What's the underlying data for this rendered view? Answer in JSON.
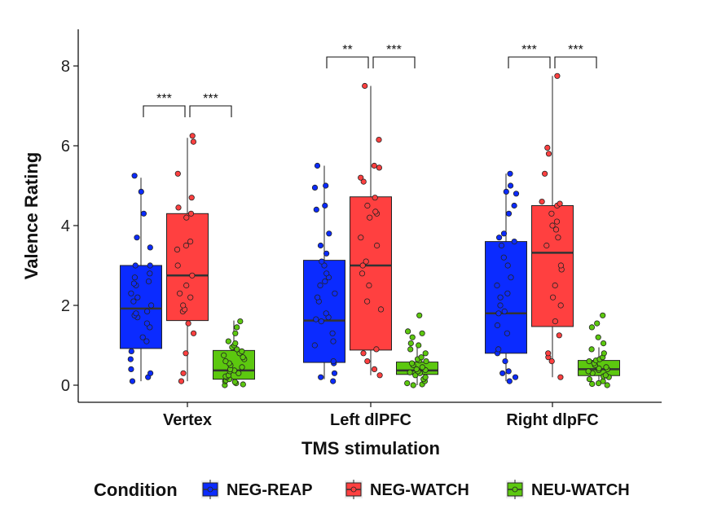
{
  "chart_data": {
    "type": "box",
    "xlabel": "TMS stimulation",
    "ylabel": "Valence Rating",
    "ylim": [
      -0.4,
      8.9
    ],
    "yticks": [
      0,
      2,
      4,
      6,
      8
    ],
    "grid": false,
    "categories": [
      "Vertex",
      "Left dlPFC",
      "Right dlpFC"
    ],
    "legend": {
      "title": "Condition",
      "position": "bottom",
      "items": [
        {
          "name": "NEG-REAP",
          "color": "#0b2bff"
        },
        {
          "name": "NEG-WATCH",
          "color": "#ff4040"
        },
        {
          "name": "NEU-WATCH",
          "color": "#5cc80f"
        }
      ]
    },
    "series": [
      {
        "name": "NEG-REAP",
        "color": "#0b2bff",
        "boxes": [
          {
            "whisker_low": 0.1,
            "q1": 0.92,
            "median": 1.92,
            "q3": 3.0,
            "whisker_high": 5.2,
            "points": [
              0.1,
              0.2,
              0.3,
              0.4,
              0.65,
              0.85,
              1.1,
              1.2,
              1.45,
              1.55,
              1.7,
              1.75,
              1.8,
              1.85,
              2.0,
              2.1,
              2.2,
              2.3,
              2.5,
              2.55,
              2.6,
              2.7,
              2.8,
              3.0,
              3.0,
              3.45,
              3.7,
              4.3,
              4.85,
              5.25
            ]
          },
          {
            "whisker_low": 0.15,
            "q1": 0.57,
            "median": 1.62,
            "q3": 3.13,
            "whisker_high": 5.5,
            "points": [
              0.1,
              0.2,
              0.3,
              0.55,
              0.6,
              1.0,
              1.1,
              1.3,
              1.6,
              1.65,
              1.7,
              1.8,
              2.1,
              2.2,
              2.3,
              2.5,
              2.6,
              2.7,
              2.8,
              3.0,
              3.1,
              3.3,
              3.5,
              3.8,
              4.4,
              4.5,
              4.95,
              5.0,
              5.5
            ]
          },
          {
            "whisker_low": 0.1,
            "q1": 0.8,
            "median": 1.8,
            "q3": 3.6,
            "whisker_high": 5.3,
            "points": [
              0.1,
              0.2,
              0.3,
              0.35,
              0.6,
              0.8,
              0.9,
              1.3,
              1.5,
              1.8,
              1.85,
              2.0,
              2.2,
              2.3,
              2.5,
              2.7,
              3.0,
              3.2,
              3.5,
              3.6,
              3.7,
              3.8,
              4.3,
              4.5,
              4.8,
              4.85,
              5.0,
              5.3
            ]
          }
        ]
      },
      {
        "name": "NEG-WATCH",
        "color": "#ff4040",
        "boxes": [
          {
            "whisker_low": 0.1,
            "q1": 1.62,
            "median": 2.75,
            "q3": 4.3,
            "whisker_high": 6.2,
            "points": [
              0.1,
              0.3,
              0.8,
              1.3,
              1.55,
              1.85,
              1.9,
              2.0,
              2.2,
              2.3,
              2.5,
              2.75,
              3.0,
              3.4,
              3.5,
              3.6,
              4.2,
              4.3,
              4.45,
              4.7,
              5.3,
              6.1,
              6.25
            ]
          },
          {
            "whisker_low": 0.25,
            "q1": 0.88,
            "median": 3.0,
            "q3": 4.72,
            "whisker_high": 7.5,
            "points": [
              0.25,
              0.4,
              0.6,
              0.8,
              0.9,
              1.9,
              2.1,
              2.5,
              2.8,
              3.0,
              3.1,
              3.5,
              3.7,
              4.2,
              4.3,
              4.35,
              4.5,
              4.7,
              5.1,
              5.2,
              5.45,
              5.5,
              6.15,
              7.5
            ]
          },
          {
            "whisker_low": 0.2,
            "q1": 1.47,
            "median": 3.32,
            "q3": 4.5,
            "whisker_high": 7.75,
            "points": [
              0.2,
              0.6,
              0.7,
              0.8,
              1.25,
              1.6,
              2.0,
              2.2,
              2.5,
              2.9,
              3.0,
              3.5,
              3.7,
              3.9,
              4.0,
              4.1,
              4.3,
              4.5,
              4.55,
              4.6,
              5.3,
              5.8,
              5.95,
              7.75
            ]
          }
        ]
      },
      {
        "name": "NEU-WATCH",
        "color": "#5cc80f",
        "boxes": [
          {
            "whisker_low": 0.0,
            "q1": 0.15,
            "median": 0.37,
            "q3": 0.87,
            "whisker_high": 1.62,
            "points": [
              0.0,
              0.02,
              0.05,
              0.08,
              0.1,
              0.12,
              0.15,
              0.2,
              0.22,
              0.25,
              0.3,
              0.35,
              0.37,
              0.4,
              0.45,
              0.5,
              0.55,
              0.6,
              0.65,
              0.7,
              0.75,
              0.8,
              0.85,
              0.9,
              0.95,
              1.0,
              1.05,
              1.1,
              1.3,
              1.45,
              1.6
            ]
          },
          {
            "whisker_low": 0.0,
            "q1": 0.27,
            "median": 0.37,
            "q3": 0.58,
            "whisker_high": 0.95,
            "points": [
              0.0,
              0.02,
              0.05,
              0.1,
              0.15,
              0.2,
              0.25,
              0.3,
              0.32,
              0.35,
              0.38,
              0.4,
              0.45,
              0.5,
              0.55,
              0.6,
              0.62,
              0.65,
              0.7,
              0.8,
              0.9,
              1.0,
              1.05,
              1.2,
              1.3,
              1.35,
              1.75
            ]
          },
          {
            "whisker_low": 0.0,
            "q1": 0.24,
            "median": 0.4,
            "q3": 0.62,
            "whisker_high": 0.95,
            "points": [
              0.0,
              0.03,
              0.05,
              0.1,
              0.15,
              0.2,
              0.22,
              0.25,
              0.3,
              0.35,
              0.38,
              0.4,
              0.42,
              0.45,
              0.5,
              0.55,
              0.6,
              0.62,
              0.65,
              0.7,
              0.8,
              0.9,
              1.05,
              1.2,
              1.45,
              1.55,
              1.75
            ]
          }
        ]
      }
    ],
    "annotations": [
      {
        "category": 0,
        "from": 0,
        "to": 1,
        "label": "***",
        "y": 8.62
      },
      {
        "category": 0,
        "from": 1,
        "to": 2,
        "label": "***",
        "y": 8.62
      },
      {
        "category": 1,
        "from": 0,
        "to": 1,
        "label": "**",
        "y": 8.62
      },
      {
        "category": 1,
        "from": 1,
        "to": 2,
        "label": "***",
        "y": 8.62
      },
      {
        "category": 2,
        "from": 0,
        "to": 1,
        "label": "***",
        "y": 8.62
      },
      {
        "category": 2,
        "from": 1,
        "to": 2,
        "label": "***",
        "y": 8.62
      }
    ]
  }
}
